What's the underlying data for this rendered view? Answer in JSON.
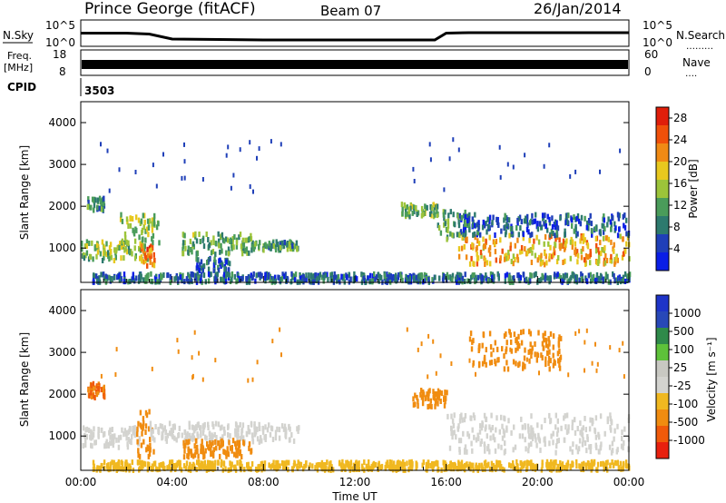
{
  "header": {
    "title": "Prince George (fitACF)",
    "beam": "Beam 07",
    "date": "26/Jan/2014"
  },
  "left_labels": {
    "nsky": "N.Sky",
    "freq_line1": "Freq.",
    "freq_line2": "[MHz]",
    "cpid": "CPID"
  },
  "right_labels": {
    "nsearch": "N.Search",
    "nave": "Nave",
    "dots": "………",
    "dots_short": "…."
  },
  "cpid_value": "3503",
  "colors": {
    "power_scale": [
      "#0a1ee6",
      "#1f3fb8",
      "#2d7a6e",
      "#4a9c5a",
      "#9cc43a",
      "#e8c81e",
      "#f08a14",
      "#f0500a",
      "#e01e0a"
    ],
    "velocity_scale": [
      "#e8200e",
      "#f05a0a",
      "#f08c10",
      "#f0b820",
      "#d3d3cf",
      "#c8c8c2",
      "#5ec23a",
      "#2f8a4a",
      "#2848b8",
      "#1e34c8"
    ]
  },
  "chart_data": [
    {
      "type": "line",
      "panel": "noise",
      "left_axis": {
        "label": "N.Sky",
        "ticks": [
          "10^5",
          "10^0"
        ]
      },
      "right_axis": {
        "label": "N.Search",
        "ticks": [
          "10^5",
          "10^0"
        ]
      },
      "x": [
        0,
        1,
        2,
        3,
        4,
        8,
        12,
        15.5,
        16,
        17,
        20,
        24
      ],
      "series": [
        {
          "values": [
            2.5,
            2.5,
            2.5,
            2.3,
            1.2,
            1.0,
            1.0,
            1.0,
            2.5,
            2.6,
            2.6,
            2.6
          ]
        }
      ]
    },
    {
      "type": "bar",
      "panel": "frequency",
      "left_axis": {
        "label": "Freq. [MHz]",
        "ticks": [
          "18",
          "8"
        ],
        "ylim": [
          8,
          18
        ]
      },
      "right_axis": {
        "label": "Nave",
        "ticks": [
          "60",
          "0"
        ],
        "ylim": [
          0,
          60
        ]
      },
      "xlim": [
        0,
        24
      ],
      "values": {
        "freq_mhz": 11
      }
    },
    {
      "type": "heatmap",
      "panel": "power",
      "xlabel": "",
      "ylabel": "Slant Range [km]",
      "xlim": [
        0,
        24
      ],
      "ylim": [
        180,
        4500
      ],
      "yticks": [
        1000,
        2000,
        3000,
        4000
      ],
      "colorbar": {
        "label": "Power [dB]",
        "ticks": [
          "4",
          "8",
          "12",
          "16",
          "20",
          "24",
          "28"
        ],
        "range": [
          0,
          30
        ]
      },
      "blobs": [
        {
          "t0": 0.0,
          "t1": 2.9,
          "r0": 700,
          "r1": 1150,
          "value": 14
        },
        {
          "t0": 0.2,
          "t1": 1.0,
          "r0": 1900,
          "r1": 2200,
          "value": 10
        },
        {
          "t0": 1.7,
          "t1": 3.4,
          "r0": 1100,
          "r1": 1800,
          "value": 15
        },
        {
          "t0": 2.6,
          "t1": 3.2,
          "r0": 550,
          "r1": 1050,
          "value": 23
        },
        {
          "t0": 4.4,
          "t1": 7.5,
          "r0": 850,
          "r1": 1350,
          "value": 12
        },
        {
          "t0": 5.0,
          "t1": 6.5,
          "r0": 450,
          "r1": 750,
          "value": 6
        },
        {
          "t0": 7.5,
          "t1": 9.5,
          "r0": 950,
          "r1": 1150,
          "value": 11
        },
        {
          "t0": 14.0,
          "t1": 15.6,
          "r0": 1750,
          "r1": 2050,
          "value": 13
        },
        {
          "t0": 15.6,
          "t1": 17.0,
          "r0": 1200,
          "r1": 1900,
          "value": 11
        },
        {
          "t0": 16.5,
          "t1": 24.0,
          "r0": 600,
          "r1": 1300,
          "value": 20
        },
        {
          "t0": 16.5,
          "t1": 24.0,
          "r0": 1300,
          "r1": 1800,
          "value": 6
        },
        {
          "t0": 0.5,
          "t1": 24.0,
          "r0": 180,
          "r1": 380,
          "value": 7
        }
      ]
    },
    {
      "type": "heatmap",
      "panel": "velocity",
      "xlabel": "Time UT",
      "ylabel": "Slant Range [km]",
      "xlim": [
        0,
        24
      ],
      "ylim": [
        180,
        4500
      ],
      "yticks": [
        1000,
        2000,
        3000,
        4000
      ],
      "xticks": [
        "00:00",
        "04:00",
        "08:00",
        "12:00",
        "16:00",
        "20:00",
        "00:00"
      ],
      "colorbar": {
        "label": "Velocity [m s⁻¹]",
        "ticks": [
          "1000",
          "500",
          "100",
          "25",
          "-25",
          "-100",
          "-500",
          "-1000"
        ]
      },
      "blobs": [
        {
          "t0": 0.0,
          "t1": 2.6,
          "r0": 700,
          "r1": 1200,
          "value": 0
        },
        {
          "t0": 0.2,
          "t1": 1.0,
          "r0": 1900,
          "r1": 2250,
          "value": -500
        },
        {
          "t0": 2.4,
          "t1": 3.2,
          "r0": 500,
          "r1": 1600,
          "value": -150
        },
        {
          "t0": 3.0,
          "t1": 9.5,
          "r0": 850,
          "r1": 1300,
          "value": 0
        },
        {
          "t0": 4.4,
          "t1": 7.5,
          "r0": 500,
          "r1": 900,
          "value": -400
        },
        {
          "t0": 14.5,
          "t1": 16.0,
          "r0": 1700,
          "r1": 2100,
          "value": -150
        },
        {
          "t0": 16.0,
          "t1": 24.0,
          "r0": 600,
          "r1": 1500,
          "value": 0
        },
        {
          "t0": 17.0,
          "t1": 21.0,
          "r0": 2600,
          "r1": 3500,
          "value": -300
        },
        {
          "t0": 0.5,
          "t1": 24.0,
          "r0": 180,
          "r1": 380,
          "value": -80
        }
      ]
    }
  ]
}
